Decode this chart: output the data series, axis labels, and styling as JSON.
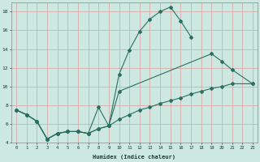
{
  "xlabel": "Humidex (Indice chaleur)",
  "background_color": "#cce8e0",
  "grid_color": "#f0c0c0",
  "line_color": "#2a7060",
  "xlim": [
    -0.5,
    23.5
  ],
  "ylim": [
    4,
    19
  ],
  "xticks": [
    0,
    1,
    2,
    3,
    4,
    5,
    6,
    7,
    8,
    9,
    10,
    11,
    12,
    13,
    14,
    15,
    16,
    17,
    18,
    19,
    20,
    21,
    22,
    23
  ],
  "yticks": [
    4,
    6,
    8,
    10,
    12,
    14,
    16,
    18
  ],
  "line1": {
    "x": [
      0,
      1,
      2,
      3,
      4,
      5,
      6,
      7,
      8,
      9,
      10,
      11,
      12,
      13,
      14,
      15,
      16,
      17
    ],
    "y": [
      7.5,
      7.0,
      6.3,
      4.4,
      5.0,
      5.2,
      5.2,
      5.0,
      7.8,
      5.8,
      11.3,
      13.9,
      15.9,
      17.2,
      18.0,
      18.5,
      17.0,
      15.3
    ]
  },
  "line2": {
    "x": [
      0,
      1,
      2,
      3,
      4,
      5,
      6,
      7,
      8,
      9,
      10,
      19,
      20,
      21,
      23
    ],
    "y": [
      7.5,
      7.0,
      6.3,
      4.4,
      5.0,
      5.2,
      5.2,
      5.0,
      5.5,
      5.8,
      9.5,
      13.5,
      12.7,
      11.8,
      10.3
    ]
  },
  "line3": {
    "x": [
      0,
      1,
      2,
      3,
      4,
      5,
      6,
      7,
      8,
      9,
      10,
      11,
      12,
      13,
      14,
      15,
      16,
      17,
      18,
      19,
      20,
      21,
      23
    ],
    "y": [
      7.5,
      7.0,
      6.3,
      4.4,
      5.0,
      5.2,
      5.2,
      5.0,
      5.5,
      5.8,
      6.5,
      7.0,
      7.5,
      7.8,
      8.2,
      8.5,
      8.8,
      9.2,
      9.5,
      9.8,
      10.0,
      10.3,
      10.3
    ]
  }
}
